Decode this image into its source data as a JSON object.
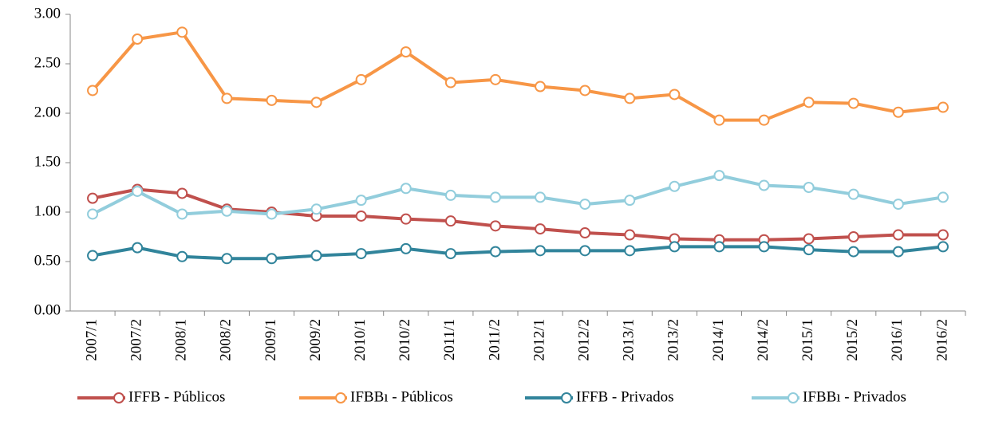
{
  "chart_data": {
    "type": "line",
    "categories": [
      "2007/1",
      "2007/2",
      "2008/1",
      "2008/2",
      "2009/1",
      "2009/2",
      "2010/1",
      "2010/2",
      "2011/1",
      "2011/2",
      "2012/1",
      "2012/2",
      "2013/1",
      "2013/2",
      "2014/1",
      "2014/2",
      "2015/1",
      "2015/2",
      "2016/1",
      "2016/2"
    ],
    "series": [
      {
        "name": "IFFB - Públicos",
        "color": "#c0504d",
        "values": [
          1.14,
          1.23,
          1.19,
          1.03,
          1.0,
          0.96,
          0.96,
          0.93,
          0.91,
          0.86,
          0.83,
          0.79,
          0.77,
          0.73,
          0.72,
          0.72,
          0.73,
          0.75,
          0.77,
          0.77
        ]
      },
      {
        "name": "IFBBı - Públicos",
        "color": "#f79646",
        "values": [
          2.23,
          2.75,
          2.82,
          2.15,
          2.13,
          2.11,
          2.34,
          2.62,
          2.31,
          2.34,
          2.27,
          2.23,
          2.15,
          2.19,
          1.93,
          1.93,
          2.11,
          2.1,
          2.01,
          2.06
        ]
      },
      {
        "name": "IFFB - Privados",
        "color": "#31849b",
        "values": [
          0.56,
          0.64,
          0.55,
          0.53,
          0.53,
          0.56,
          0.58,
          0.63,
          0.58,
          0.6,
          0.61,
          0.61,
          0.61,
          0.65,
          0.65,
          0.65,
          0.62,
          0.6,
          0.6,
          0.65
        ]
      },
      {
        "name": "IFBBı - Privados",
        "color": "#92cddc",
        "values": [
          0.98,
          1.21,
          0.98,
          1.01,
          0.98,
          1.03,
          1.12,
          1.24,
          1.17,
          1.15,
          1.15,
          1.08,
          1.12,
          1.26,
          1.37,
          1.27,
          1.25,
          1.18,
          1.08,
          1.15
        ]
      }
    ],
    "ylim": [
      0,
      3
    ],
    "yticks": [
      {
        "value": 0,
        "label": "0.00"
      },
      {
        "value": 0.5,
        "label": "0.50"
      },
      {
        "value": 1,
        "label": "1.00"
      },
      {
        "value": 1.5,
        "label": "1.50"
      },
      {
        "value": 2,
        "label": "2.00"
      },
      {
        "value": 2.5,
        "label": "2.50"
      },
      {
        "value": 3,
        "label": "3.00"
      }
    ],
    "grid": false
  }
}
